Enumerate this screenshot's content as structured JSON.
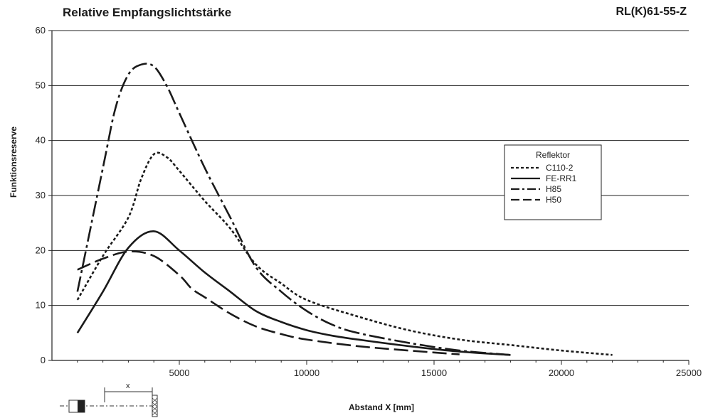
{
  "header": {
    "title": "Relative Empfangslichtstärke",
    "model": "RL(K)61-55-Z"
  },
  "chart_data": {
    "type": "line",
    "title": "Relative Empfangslichtstärke",
    "xlabel": "Abstand X [mm]",
    "ylabel": "Funktionsreserve",
    "xlim": [
      0,
      25000
    ],
    "ylim": [
      0,
      60
    ],
    "xticks": [
      5000,
      10000,
      15000,
      20000,
      25000
    ],
    "yticks": [
      0,
      10,
      20,
      30,
      40,
      50,
      60
    ],
    "grid": "horizontal",
    "legend": {
      "title": "Reflektor",
      "placement": "right"
    },
    "series": [
      {
        "name": "C110-2",
        "style": "dotted",
        "points": [
          [
            1000,
            11
          ],
          [
            2000,
            19
          ],
          [
            3000,
            26
          ],
          [
            3500,
            33
          ],
          [
            4000,
            37.5
          ],
          [
            4500,
            37
          ],
          [
            5000,
            34.5
          ],
          [
            6000,
            29
          ],
          [
            7000,
            24
          ],
          [
            8000,
            17.5
          ],
          [
            9000,
            14
          ],
          [
            10000,
            11
          ],
          [
            12000,
            8
          ],
          [
            14000,
            5.5
          ],
          [
            16000,
            3.8
          ],
          [
            18000,
            2.8
          ],
          [
            20000,
            1.8
          ],
          [
            22000,
            1
          ]
        ]
      },
      {
        "name": "FE-RR1",
        "style": "solid",
        "points": [
          [
            1000,
            5
          ],
          [
            2000,
            12.5
          ],
          [
            3000,
            20.5
          ],
          [
            4000,
            23.5
          ],
          [
            5000,
            20
          ],
          [
            6000,
            16
          ],
          [
            7000,
            12.5
          ],
          [
            8000,
            9
          ],
          [
            9000,
            7
          ],
          [
            10000,
            5.5
          ],
          [
            11000,
            4.5
          ],
          [
            12000,
            3.8
          ],
          [
            14000,
            2.6
          ],
          [
            16000,
            1.6
          ],
          [
            18000,
            1
          ]
        ]
      },
      {
        "name": "H85",
        "style": "dash-dot",
        "points": [
          [
            1000,
            12.5
          ],
          [
            2000,
            35
          ],
          [
            2500,
            46
          ],
          [
            3000,
            52
          ],
          [
            3500,
            53.8
          ],
          [
            4000,
            53.5
          ],
          [
            4500,
            50
          ],
          [
            5000,
            45
          ],
          [
            6000,
            35
          ],
          [
            7000,
            26
          ],
          [
            8000,
            17
          ],
          [
            9000,
            12.5
          ],
          [
            10000,
            9
          ],
          [
            11000,
            6.5
          ],
          [
            12000,
            5
          ],
          [
            14000,
            3.2
          ],
          [
            16000,
            1.8
          ],
          [
            18000,
            1
          ]
        ]
      },
      {
        "name": "H50",
        "style": "dashed",
        "points": [
          [
            1000,
            16.5
          ],
          [
            2000,
            18.5
          ],
          [
            3000,
            19.8
          ],
          [
            4000,
            19
          ],
          [
            5000,
            15.5
          ],
          [
            5500,
            13
          ],
          [
            6000,
            11.5
          ],
          [
            7000,
            8.5
          ],
          [
            8000,
            6.2
          ],
          [
            9000,
            4.8
          ],
          [
            10000,
            3.8
          ],
          [
            12000,
            2.6
          ],
          [
            14000,
            1.8
          ],
          [
            16000,
            1.1
          ]
        ]
      }
    ]
  }
}
